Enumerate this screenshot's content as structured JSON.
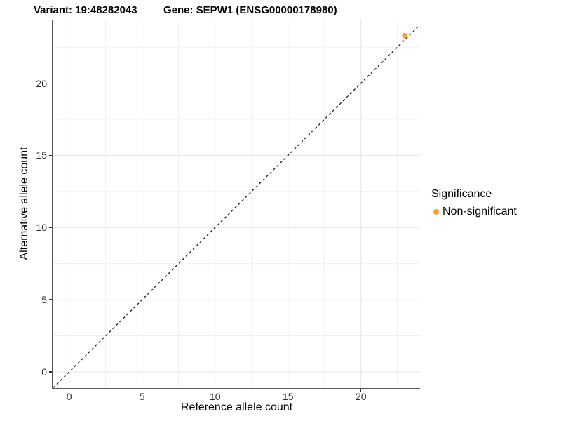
{
  "titles": {
    "variant": "Variant: 19:48282043",
    "gene": "Gene: SEPW1 (ENSG00000178980)"
  },
  "chart_data": {
    "type": "scatter",
    "title_left": "Variant: 19:48282043",
    "title_right": "Gene: SEPW1 (ENSG00000178980)",
    "xlabel": "Reference allele count",
    "ylabel": "Alternative allele count",
    "xlim": [
      -1.09,
      24.05
    ],
    "ylim": [
      -1.12,
      24.4
    ],
    "x_ticks": [
      0,
      5,
      10,
      15,
      20
    ],
    "y_ticks": [
      0,
      5,
      10,
      15,
      20
    ],
    "x_minor": [
      2.5,
      7.5,
      12.5,
      17.5,
      22.5
    ],
    "y_minor": [
      2.5,
      7.5,
      12.5,
      17.5,
      22.5
    ],
    "grid": true,
    "identity_line": {
      "slope": 1,
      "intercept": 0,
      "style": "dashed",
      "color": "#1a1a1a"
    },
    "series": [
      {
        "name": "Non-significant",
        "color": "#f9a12b",
        "points": [
          {
            "x": 23,
            "y": 23.3
          }
        ]
      }
    ],
    "legend": {
      "title": "Significance",
      "position": "right",
      "entries": [
        {
          "label": "Non-significant",
          "color": "#f9a12b"
        }
      ]
    },
    "colors": {
      "background": "#ffffff",
      "grid_major": "#e4e4e4",
      "grid_minor": "#f0f0f0",
      "axis_line": "#595959",
      "tick_mark": "#333333",
      "tick_label": "#303030",
      "point": "#f9a12b",
      "dash_line": "#1a1a1a"
    }
  }
}
